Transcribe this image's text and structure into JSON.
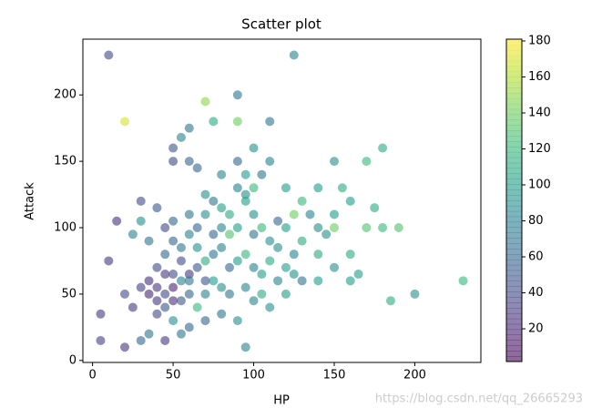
{
  "chart_data": {
    "type": "scatter",
    "title": "Scatter plot",
    "x_label": "HP",
    "y_label": "Attack",
    "watermark": "https://blog.csdn.net/qq_26665293",
    "colormap": "viridis",
    "alpha": 0.6,
    "xlim": [
      -6,
      241
    ],
    "ylim": [
      -1.5,
      242
    ],
    "xticks": [
      0,
      50,
      100,
      150,
      200
    ],
    "yticks": [
      0,
      50,
      100,
      150,
      200
    ],
    "clim": [
      1.8,
      181
    ],
    "cticks": [
      20,
      40,
      60,
      80,
      100,
      120,
      140,
      160,
      180
    ],
    "x": [
      10,
      125,
      20,
      70,
      90,
      90,
      110,
      75,
      60,
      50,
      55,
      60,
      65,
      50,
      230,
      200,
      185,
      180,
      170,
      150,
      155,
      140,
      160,
      150,
      170,
      180,
      190,
      175,
      150,
      130,
      135,
      145,
      120,
      110,
      125,
      140,
      150,
      160,
      130,
      120,
      110,
      100,
      95,
      90,
      80,
      70,
      60,
      45,
      35,
      30,
      20,
      5,
      5,
      10,
      15,
      20,
      25,
      30,
      35,
      40,
      45,
      50,
      55,
      60,
      40,
      45,
      35,
      30,
      25,
      30,
      40,
      45,
      50,
      55,
      60,
      65,
      70,
      75,
      80,
      85,
      90,
      95,
      100,
      105,
      110,
      90,
      95,
      85,
      80,
      75,
      70,
      65,
      60,
      55,
      50,
      45,
      40,
      50,
      55,
      65,
      70,
      75,
      80,
      85,
      90,
      95,
      100,
      105,
      110,
      115,
      120,
      100,
      100,
      105,
      90,
      80,
      75,
      65,
      55,
      45,
      35,
      40,
      50,
      60,
      70,
      85,
      95,
      105,
      115,
      125,
      130,
      140,
      160,
      165,
      115,
      125,
      70,
      60,
      50,
      80,
      100,
      120,
      140,
      95
    ],
    "values": [
      230,
      230,
      180,
      195,
      200,
      180,
      180,
      180,
      175,
      160,
      168,
      150,
      145,
      150,
      60,
      50,
      45,
      160,
      150,
      150,
      130,
      130,
      120,
      110,
      100,
      100,
      100,
      115,
      100,
      120,
      110,
      95,
      100,
      90,
      80,
      80,
      70,
      60,
      60,
      50,
      40,
      45,
      10,
      30,
      35,
      30,
      25,
      15,
      20,
      15,
      10,
      35,
      15,
      75,
      105,
      50,
      40,
      55,
      60,
      45,
      50,
      55,
      45,
      65,
      70,
      80,
      90,
      105,
      95,
      120,
      115,
      100,
      90,
      85,
      95,
      100,
      110,
      120,
      115,
      110,
      130,
      125,
      130,
      140,
      150,
      150,
      140,
      95,
      85,
      80,
      75,
      70,
      60,
      60,
      65,
      40,
      35,
      30,
      20,
      40,
      50,
      60,
      55,
      70,
      75,
      80,
      70,
      65,
      75,
      85,
      70,
      95,
      110,
      100,
      100,
      100,
      95,
      85,
      75,
      65,
      50,
      55,
      45,
      50,
      60,
      50,
      55,
      50,
      60,
      65,
      90,
      60,
      80,
      65,
      105,
      110,
      125,
      110,
      105,
      140,
      160,
      130,
      100,
      120
    ],
    "c": [
      40,
      80,
      170,
      150,
      70,
      140,
      70,
      110,
      70,
      50,
      80,
      60,
      60,
      40,
      120,
      90,
      110,
      110,
      120,
      90,
      110,
      100,
      100,
      100,
      130,
      120,
      130,
      110,
      140,
      120,
      80,
      90,
      100,
      90,
      80,
      110,
      90,
      100,
      70,
      100,
      90,
      80,
      80,
      90,
      70,
      60,
      60,
      30,
      70,
      60,
      30,
      30,
      35,
      30,
      25,
      40,
      30,
      35,
      25,
      30,
      40,
      20,
      50,
      30,
      40,
      60,
      70,
      90,
      80,
      40,
      50,
      40,
      60,
      70,
      80,
      60,
      90,
      70,
      100,
      110,
      80,
      90,
      120,
      70,
      80,
      60,
      100,
      130,
      80,
      70,
      110,
      50,
      70,
      80,
      40,
      50,
      40,
      90,
      70,
      120,
      80,
      100,
      90,
      60,
      100,
      120,
      80,
      100,
      110,
      90,
      100,
      70,
      90,
      120,
      100,
      80,
      60,
      90,
      40,
      30,
      20,
      30,
      25,
      60,
      50,
      70,
      80,
      110,
      80,
      90,
      110,
      100,
      110,
      100,
      60,
      140,
      90,
      70,
      60,
      80,
      90,
      100,
      90,
      100
    ]
  }
}
